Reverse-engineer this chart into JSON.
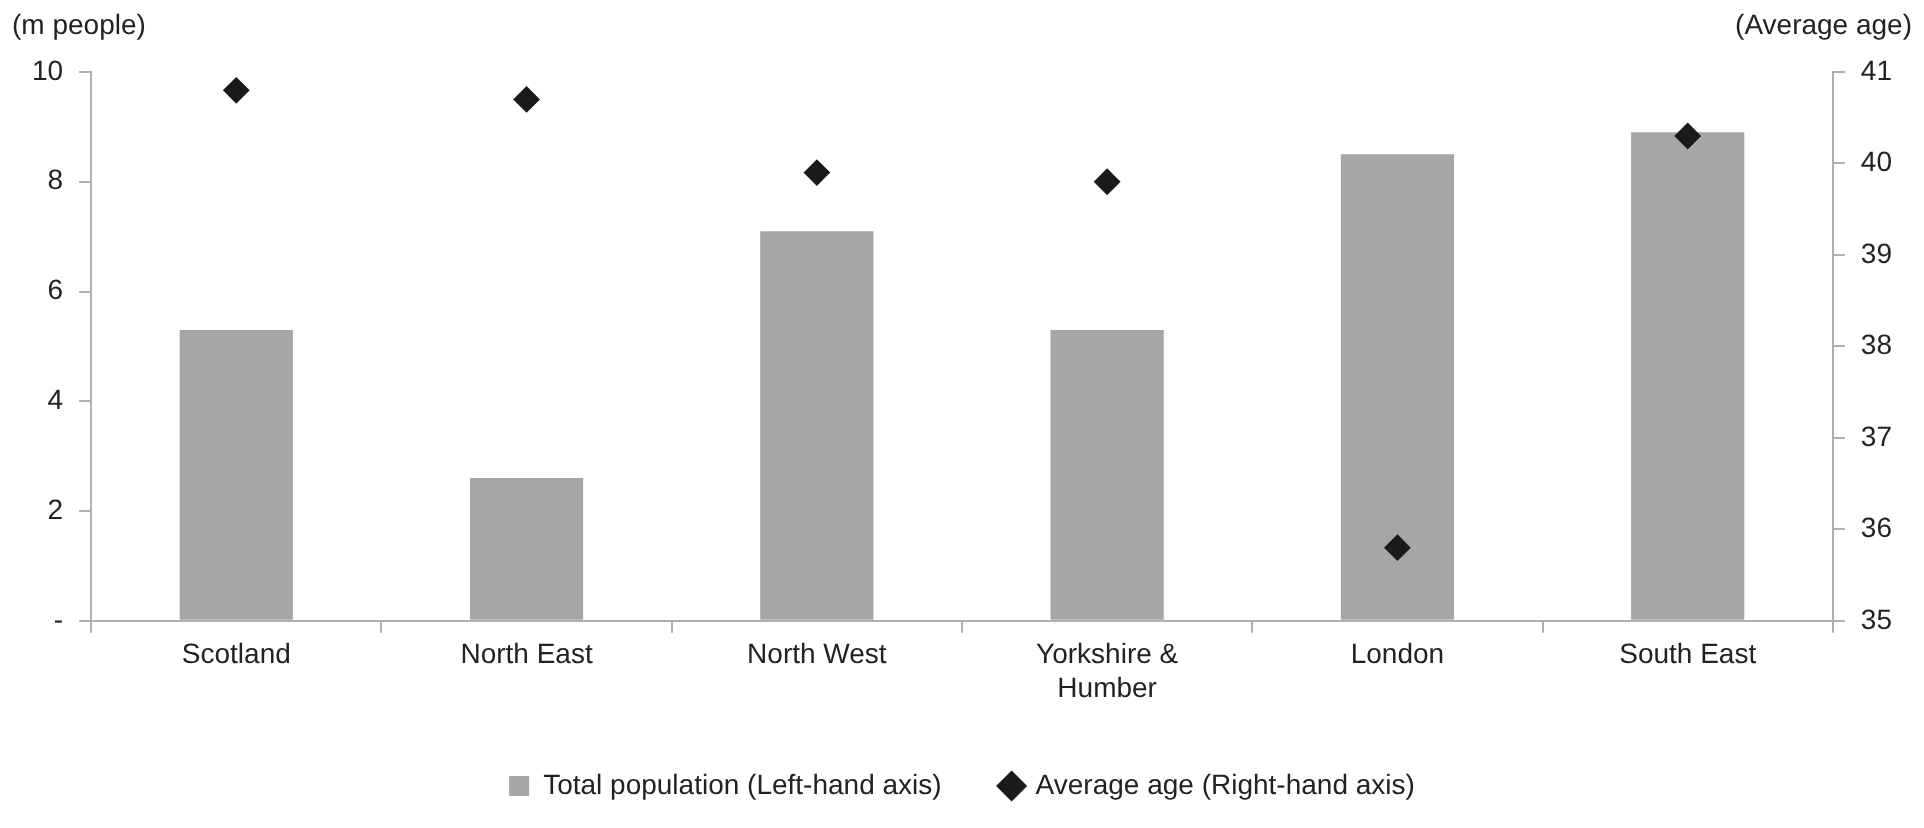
{
  "chart_data": {
    "type": "bar",
    "ylabel": "(m people)",
    "y2label": "(Average age)",
    "categories": [
      "Scotland",
      "North East",
      "North West",
      "Yorkshire & Humber",
      "London",
      "South East"
    ],
    "series": [
      {
        "name": "Total population (Left-hand axis)",
        "color": "#a6a6a6",
        "values": [
          5.3,
          2.6,
          7.1,
          5.3,
          8.5,
          8.9
        ]
      },
      {
        "name": "Average age (Right-hand axis)",
        "type": "scatter",
        "axis": "y2",
        "marker": "diamond",
        "color": "#1a1a1a",
        "x": [
          "Scotland",
          "North East",
          "North West",
          "Yorkshire & Humber",
          "London",
          "South East"
        ],
        "values": [
          40.8,
          40.7,
          39.9,
          39.8,
          35.8,
          40.3
        ]
      }
    ],
    "ylim": [
      0,
      10
    ],
    "yticks": [
      {
        "value": 0,
        "label": "-"
      },
      2,
      4,
      6,
      8,
      10
    ],
    "y2lim": [
      35,
      41
    ],
    "y2ticks": [
      35,
      36,
      37,
      38,
      39,
      40,
      41
    ],
    "grid": false,
    "legend": "bottom"
  }
}
